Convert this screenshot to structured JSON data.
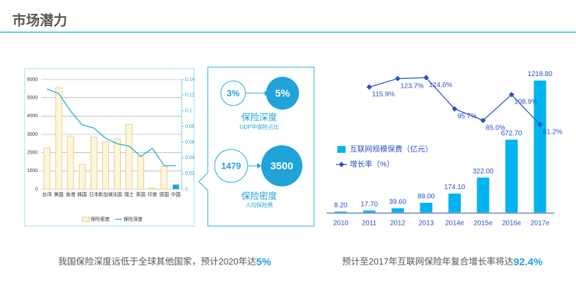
{
  "header": {
    "title": "市场潜力"
  },
  "chart_data": [
    {
      "type": "bar",
      "categories": [
        "台湾",
        "美国",
        "香港",
        "韩国",
        "日本",
        "新加坡",
        "法国",
        "瑞士",
        "英国",
        "印度",
        "德国",
        "中国"
      ],
      "series": [
        {
          "name": "保险密度",
          "type": "bar",
          "color": "#fdf6dc",
          "stroke": "#e6c46a",
          "highlight": "中国",
          "highlight_color": "#1fa3d9",
          "values": [
            2250,
            5550,
            2900,
            1350,
            2850,
            2600,
            2750,
            3550,
            1800,
            50,
            1250,
            250
          ]
        },
        {
          "name": "保险深度",
          "type": "line",
          "axis": "y2",
          "color": "#1fa8d8",
          "values": [
            0.128,
            0.122,
            0.1,
            0.082,
            0.078,
            0.065,
            0.058,
            0.055,
            0.042,
            0.052,
            0.03,
            0.03
          ]
        }
      ],
      "ylim": [
        0,
        6000
      ],
      "yticks": [
        0,
        1000,
        2000,
        3000,
        4000,
        5000,
        6000
      ],
      "y2lim": [
        0,
        0.14
      ],
      "y2ticks": [
        0,
        0.02,
        0.04,
        0.06,
        0.08,
        0.1,
        0.12,
        0.14
      ],
      "grid": true,
      "legend": "bottom"
    },
    {
      "type": "bar",
      "categories": [
        "2010",
        "2011",
        "2012",
        "2013",
        "2014e",
        "2015e",
        "2016e",
        "2017e"
      ],
      "series": [
        {
          "name": "互联网规模保费（亿元）",
          "type": "bar",
          "color": "#00b4f0",
          "values": [
            8.2,
            17.7,
            39.6,
            89,
            174.1,
            322,
            672.7,
            1218.8
          ],
          "value_labels": [
            "8.20",
            "17.70",
            "39.60",
            "89.00",
            "174.10",
            "322.00",
            "672.70",
            "1218.80"
          ]
        },
        {
          "name": "增长率（%）",
          "type": "line",
          "axis": "y2",
          "color": "#2b50c8",
          "marker": "diamond",
          "values": [
            null,
            115.9,
            123.7,
            124.6,
            95.7,
            85.0,
            108.9,
            81.2
          ],
          "value_labels": [
            null,
            "115.9%",
            "123.7%",
            "124.6%",
            "95.7%",
            "85.0%",
            "108.9%",
            "81.2%"
          ]
        }
      ],
      "ylim": [
        0,
        1330
      ],
      "y2lim": [
        0,
        133
      ],
      "grid": false,
      "legend": "left"
    }
  ],
  "diagram": {
    "depth": {
      "from": "3%",
      "to": "5%",
      "label": "保险深度",
      "sublabel": "GDP中保险占比"
    },
    "density": {
      "from": "1479",
      "to": "3500",
      "label": "保险密度",
      "sublabel": "人均保险费"
    }
  },
  "captions": [
    {
      "text": "我国保险深度远低于全球其他国家，预计2020年达",
      "emphasis": "5%"
    },
    {
      "text": "预计至2017年互联网保险年复合增长率将达",
      "emphasis": "92.4%"
    }
  ]
}
